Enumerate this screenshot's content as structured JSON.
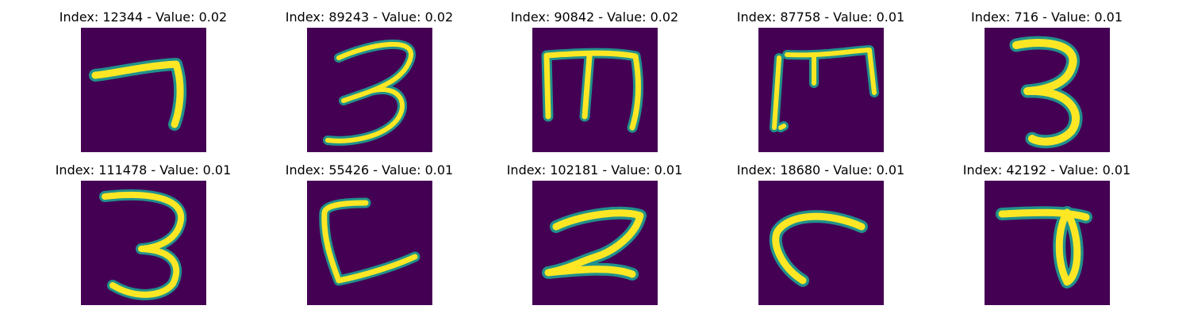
{
  "colors": {
    "background": "#440154",
    "stroke_core": "#fde725",
    "stroke_edge": "#21918c"
  },
  "panels": [
    {
      "title": "Index: 12344 - Value: 0.02",
      "glyph": "seven"
    },
    {
      "title": "Index: 89243 - Value: 0.02",
      "glyph": "three-a"
    },
    {
      "title": "Index: 90842 - Value: 0.02",
      "glyph": "m-shape"
    },
    {
      "title": "Index: 87758 - Value: 0.01",
      "glyph": "m-rotated"
    },
    {
      "title": "Index: 716 - Value: 0.01",
      "glyph": "three-b"
    },
    {
      "title": "Index: 111478 - Value: 0.01",
      "glyph": "three-c"
    },
    {
      "title": "Index: 55426 - Value: 0.01",
      "glyph": "c-shape"
    },
    {
      "title": "Index: 102181 - Value: 0.01",
      "glyph": "two"
    },
    {
      "title": "Index: 18680 - Value: 0.01",
      "glyph": "hook"
    },
    {
      "title": "Index: 42192 - Value: 0.01",
      "glyph": "flag-loop"
    }
  ]
}
